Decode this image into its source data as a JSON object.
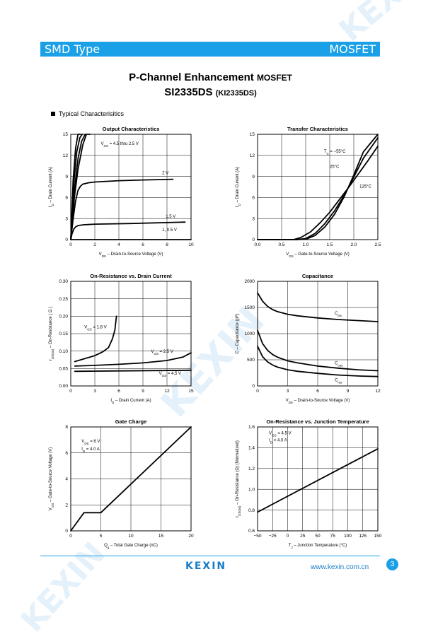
{
  "header": {
    "left": "SMD Type",
    "right": "MOSFET"
  },
  "title": {
    "line1_main": "P-Channel Enhancement ",
    "line1_small": "MOSFET",
    "line2_main": "SI2335DS ",
    "line2_small": "(KI2335DS)"
  },
  "section": "Typical  Characterisitics",
  "watermark": "KEXIN",
  "footer": {
    "logo": "KEXIN",
    "url": "www.kexin.com.cn",
    "page": "3"
  },
  "chart_data": [
    {
      "type": "line",
      "title": "Output Characteristics",
      "xlabel": "V_DS  –  Drain-to-Source Voltage (V)",
      "ylabel": "I_D  –  Drain Current (A)",
      "xlim": [
        0,
        10
      ],
      "ylim": [
        0,
        15
      ],
      "xticks": [
        0,
        2,
        4,
        6,
        8,
        10
      ],
      "yticks": [
        0,
        3,
        6,
        9,
        12,
        15
      ],
      "xtick_labels": [
        "0",
        "2",
        "4",
        "6",
        "8",
        "10"
      ],
      "ytick_labels": [
        "0",
        "3",
        "6",
        "9",
        "12",
        "15"
      ],
      "annotations": [
        {
          "text": "V_GS = 4.5 thru 2.5 V",
          "x": 2.5,
          "y": 13.5
        },
        {
          "text": "2 V",
          "x": 7.6,
          "y": 9.3
        },
        {
          "text": "1.5 V",
          "x": 7.9,
          "y": 3.1
        },
        {
          "text": "1, 0.5 V",
          "x": 7.6,
          "y": 1.2
        }
      ],
      "series": [
        {
          "x": [
            0,
            0.3,
            0.6,
            1,
            1.3,
            1.6
          ],
          "y": [
            0,
            6,
            10,
            13.5,
            15,
            15
          ]
        },
        {
          "x": [
            0,
            0.3,
            0.6,
            0.9,
            1.2
          ],
          "y": [
            0,
            7,
            11.5,
            14,
            15
          ]
        },
        {
          "x": [
            0,
            0.25,
            0.5,
            0.75,
            0.95
          ],
          "y": [
            0,
            8,
            12.5,
            14.5,
            15
          ]
        },
        {
          "x": [
            0,
            0.2,
            0.4,
            0.6,
            0.8
          ],
          "y": [
            0,
            8.5,
            13,
            15,
            15
          ]
        },
        {
          "x": [
            0,
            0.2,
            0.4,
            0.6,
            0.8,
            1,
            1.5,
            2,
            4,
            6,
            8.5
          ],
          "y": [
            0,
            3,
            5.5,
            7,
            7.6,
            7.9,
            8.1,
            8.2,
            8.4,
            8.5,
            8.6
          ]
        },
        {
          "x": [
            0,
            0.1,
            0.25,
            0.4,
            0.6,
            1,
            2,
            5,
            9.5
          ],
          "y": [
            0,
            0.8,
            1.5,
            1.8,
            2,
            2.1,
            2.2,
            2.3,
            2.5
          ]
        },
        {
          "x": [
            0,
            10
          ],
          "y": [
            0,
            0
          ]
        }
      ]
    },
    {
      "type": "line",
      "title": "Transfer Characteristics",
      "xlabel": "V_GS  –  Gate-to-Source Voltage (V)",
      "ylabel": "I_D  –  Drain Current (A)",
      "xlim": [
        0,
        2.5
      ],
      "ylim": [
        0,
        15
      ],
      "xticks": [
        0,
        0.5,
        1,
        1.5,
        2,
        2.5
      ],
      "yticks": [
        0,
        3,
        6,
        9,
        12,
        15
      ],
      "xtick_labels": [
        "0.0",
        "0.5",
        "1.0",
        "1.5",
        "2.0",
        "2.5"
      ],
      "ytick_labels": [
        "0",
        "3",
        "6",
        "9",
        "12",
        "15"
      ],
      "annotations": [
        {
          "text": "T_C = −55°C",
          "x": 1.38,
          "y": 12.4
        },
        {
          "text": "25°C",
          "x": 1.5,
          "y": 10.2
        },
        {
          "text": "125°C",
          "x": 2.12,
          "y": 7.4
        }
      ],
      "series": [
        {
          "name": "T_C = −55°C",
          "x": [
            0,
            0.8,
            1,
            1.2,
            1.4,
            1.6,
            1.8,
            2,
            2.2,
            2.5
          ],
          "y": [
            0,
            0,
            0.05,
            0.6,
            1.8,
            3.6,
            6.1,
            9.2,
            12.5,
            15
          ]
        },
        {
          "name": "25°C",
          "x": [
            0,
            0.8,
            1,
            1.2,
            1.4,
            1.6,
            1.8,
            2,
            2.2,
            2.5
          ],
          "y": [
            0,
            0,
            0.15,
            0.9,
            2.3,
            4.1,
            6.3,
            8.9,
            11.6,
            14.5
          ]
        },
        {
          "name": "125°C",
          "x": [
            0,
            0.75,
            0.9,
            1.1,
            1.3,
            1.5,
            1.7,
            1.9,
            2.1,
            2.3,
            2.5
          ],
          "y": [
            0,
            0,
            0.3,
            1.1,
            2.4,
            3.9,
            5.7,
            7.5,
            9.4,
            11.3,
            13.3
          ]
        }
      ]
    },
    {
      "type": "line",
      "title": "On-Resistance vs. Drain Current",
      "xlabel": "I_D  –  Drain Current (A)",
      "ylabel": "r_DS(on)  –  On-Resistance ( Ω )",
      "xlim": [
        0,
        15
      ],
      "ylim": [
        0,
        0.3
      ],
      "xticks": [
        0,
        3,
        6,
        9,
        12,
        15
      ],
      "yticks": [
        0,
        0.05,
        0.1,
        0.15,
        0.2,
        0.25,
        0.3
      ],
      "xtick_labels": [
        "0",
        "3",
        "6",
        "9",
        "12",
        "15"
      ],
      "ytick_labels": [
        "0.00",
        "0.05",
        "0.10",
        "0.15",
        "0.20",
        "0.25",
        "0.30"
      ],
      "annotations": [
        {
          "text": "V_GS = 1.8 V",
          "x": 1.7,
          "y": 0.165
        },
        {
          "text": "V_GS = 2.5 V",
          "x": 10,
          "y": 0.095
        },
        {
          "text": "V_GS = 4.5 V",
          "x": 11,
          "y": 0.032
        }
      ],
      "series": [
        {
          "name": "V_GS = 1.8 V",
          "x": [
            0.5,
            2,
            3,
            4,
            4.7,
            5.2,
            5.5,
            5.7
          ],
          "y": [
            0.07,
            0.08,
            0.087,
            0.098,
            0.11,
            0.135,
            0.16,
            0.2
          ]
        },
        {
          "name": "V_GS = 2.5 V",
          "x": [
            0.5,
            3,
            6,
            9,
            12,
            14,
            15
          ],
          "y": [
            0.057,
            0.059,
            0.062,
            0.066,
            0.073,
            0.083,
            0.095
          ]
        },
        {
          "name": "V_GS = 4.5 V",
          "x": [
            0.5,
            5,
            10,
            15
          ],
          "y": [
            0.042,
            0.043,
            0.044,
            0.045
          ]
        }
      ]
    },
    {
      "type": "line",
      "title": "Capacitance",
      "xlabel": "V_DS  –  Drain-to-Source Voltage (V)",
      "ylabel": "C  –  Capacitance (pF)",
      "xlim": [
        0,
        12
      ],
      "ylim": [
        0,
        2000
      ],
      "xticks": [
        0,
        3,
        6,
        9,
        12
      ],
      "yticks": [
        0,
        500,
        1000,
        1500,
        2000
      ],
      "xtick_labels": [
        "0",
        "3",
        "6",
        "9",
        "12"
      ],
      "ytick_labels": [
        "0",
        "500",
        "1000",
        "1500",
        "2000"
      ],
      "annotations": [
        {
          "text": "C_iss",
          "x": 7.7,
          "y": 1365
        },
        {
          "text": "C_oss",
          "x": 7.7,
          "y": 410
        },
        {
          "text": "C_rss",
          "x": 7.7,
          "y": 90
        }
      ],
      "series": [
        {
          "name": "C_iss",
          "x": [
            0,
            0.5,
            1,
            1.5,
            2,
            3,
            4,
            6,
            8,
            10,
            12
          ],
          "y": [
            1780,
            1620,
            1520,
            1460,
            1420,
            1370,
            1340,
            1300,
            1270,
            1250,
            1230
          ]
        },
        {
          "name": "C_oss",
          "x": [
            0,
            0.5,
            1,
            1.5,
            2,
            3,
            4,
            6,
            8,
            10,
            12
          ],
          "y": [
            1060,
            810,
            680,
            600,
            550,
            480,
            440,
            380,
            340,
            310,
            290
          ]
        },
        {
          "name": "C_rss",
          "x": [
            0,
            0.5,
            1,
            1.5,
            2,
            3,
            4,
            6,
            8,
            10,
            12
          ],
          "y": [
            760,
            560,
            460,
            400,
            360,
            310,
            280,
            240,
            210,
            190,
            180
          ]
        }
      ]
    },
    {
      "type": "line",
      "title": "Gate Charge",
      "xlabel": "Q_g  –  Total Gate Charge (nC)",
      "ylabel": "V_GS  –  Gate-to-Source Voltage (V)",
      "xlim": [
        0,
        20
      ],
      "ylim": [
        0,
        8
      ],
      "xticks": [
        0,
        5,
        10,
        15,
        20
      ],
      "yticks": [
        0,
        2,
        4,
        6,
        8
      ],
      "xtick_labels": [
        "0",
        "5",
        "10",
        "15",
        "20"
      ],
      "ytick_labels": [
        "0",
        "2",
        "4",
        "6",
        "8"
      ],
      "annotations": [
        {
          "text": "V_DS = 6 V",
          "x": 1.8,
          "y": 6.8
        },
        {
          "text": "I_D = 4.0  A",
          "x": 1.8,
          "y": 6.2
        }
      ],
      "series": [
        {
          "x": [
            0,
            2.2,
            5,
            20
          ],
          "y": [
            0,
            1.4,
            1.4,
            8
          ]
        }
      ]
    },
    {
      "type": "line",
      "title": "On-Resistance vs. Junction Temperature",
      "xlabel": "T_J – Junction Temperature (°C)",
      "ylabel": "r_DS(on)  –  On-Resistance (Ω) (Normalized)",
      "xlim": [
        -50,
        150
      ],
      "ylim": [
        0.6,
        1.6
      ],
      "xticks": [
        -50,
        -25,
        0,
        25,
        50,
        75,
        100,
        125,
        150
      ],
      "yticks": [
        0.6,
        0.8,
        1.0,
        1.2,
        1.4,
        1.6
      ],
      "xtick_labels": [
        "−50",
        "−25",
        "0",
        "25",
        "50",
        "75",
        "100",
        "125",
        "150"
      ],
      "ytick_labels": [
        "0.6",
        "0.8",
        "1.0",
        "1.2",
        "1.4",
        "1.6"
      ],
      "annotations": [
        {
          "text": "V_GS = 4.5 V",
          "x": -31,
          "y": 1.53
        },
        {
          "text": "I_D = 4.0  A",
          "x": -31,
          "y": 1.46
        }
      ],
      "series": [
        {
          "x": [
            -50,
            150
          ],
          "y": [
            0.78,
            1.39
          ]
        }
      ]
    }
  ]
}
